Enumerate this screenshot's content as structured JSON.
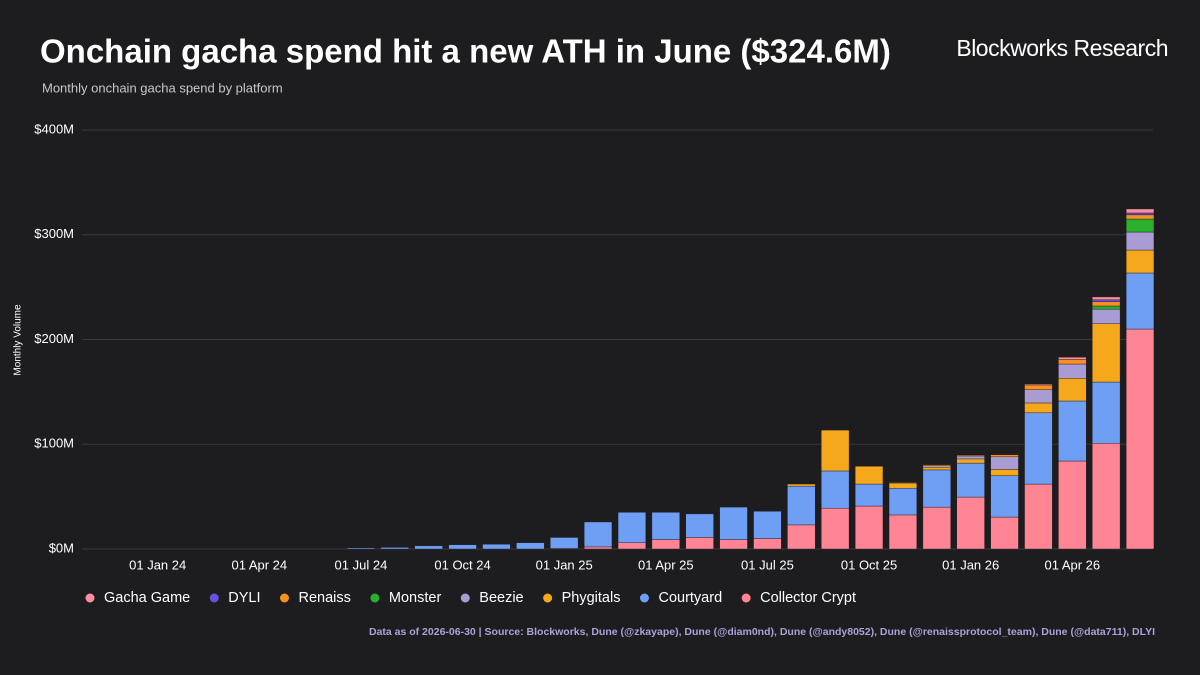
{
  "chart_data": {
    "type": "stacked_bar",
    "title": "Onchain gacha spend hit a new ATH in June ($324.6M)",
    "subtitle": "Monthly onchain gacha spend by platform",
    "brand": "Blockworks Research",
    "y_label": "Monthly Volume",
    "source": "Data as of 2026-06-30 | Source: Blockworks, Dune (@zkayape), Dune (@diam0nd), Dune (@andy8052), Dune (@renaissprotocol_team), Dune (@data711), DLYI",
    "categories": [
      null,
      null,
      "01 Jan 24",
      null,
      null,
      "01 Apr 24",
      null,
      null,
      "01 Jul 24",
      null,
      null,
      "01 Oct 24",
      null,
      null,
      "01 Jan 25",
      null,
      null,
      "01 Apr 25",
      null,
      null,
      "01 Jul 25",
      null,
      null,
      "01 Oct 25",
      null,
      null,
      "01 Jan 26",
      null,
      null,
      "01 Apr 26",
      null,
      null
    ],
    "series": [
      {
        "name": "Gacha Game",
        "color": "#ff8da1",
        "values": [
          0,
          0,
          0,
          0,
          0,
          0,
          0,
          0,
          0,
          0,
          0,
          0,
          0,
          0,
          0,
          0,
          0,
          0,
          0,
          0,
          0,
          0,
          0,
          0,
          0,
          0,
          0,
          0,
          0.9,
          2,
          2.6,
          3.8
        ]
      },
      {
        "name": "DYLI",
        "color": "#6a4fe0",
        "values": [
          0,
          0,
          0,
          0,
          0,
          0,
          0,
          0,
          0,
          0,
          0,
          0,
          0,
          0,
          0,
          0,
          0,
          0,
          0,
          0,
          0,
          0,
          0,
          0,
          0,
          0,
          0,
          0,
          0,
          0,
          2,
          1.8
        ]
      },
      {
        "name": "Renaiss",
        "color": "#f7901e",
        "values": [
          0,
          0,
          0,
          0,
          0,
          0,
          0,
          0,
          0,
          0,
          0,
          0,
          0,
          0,
          0,
          0,
          0,
          0,
          0,
          0,
          0,
          0,
          0,
          0,
          0.5,
          1,
          0.9,
          2,
          4.6,
          4.4,
          4,
          4
        ]
      },
      {
        "name": "Monster",
        "color": "#2ab02a",
        "values": [
          0,
          0,
          0,
          0,
          0,
          0,
          0,
          0,
          0,
          0,
          0,
          0,
          0,
          0,
          0,
          0,
          0,
          0,
          0,
          0,
          0,
          0,
          0,
          0,
          0,
          0,
          0,
          0,
          0,
          0,
          3,
          12.4
        ]
      },
      {
        "name": "Beezie",
        "color": "#a99bd4",
        "values": [
          0,
          0,
          0,
          0,
          0,
          0,
          0,
          0,
          0,
          0,
          0,
          0,
          0,
          0,
          0,
          0,
          0,
          0,
          0,
          0,
          0,
          0,
          0,
          0,
          0.5,
          1.5,
          2.8,
          12,
          12.6,
          13.6,
          14,
          17.2
        ]
      },
      {
        "name": "Phygitals",
        "color": "#f5a81c",
        "values": [
          0,
          0,
          0,
          0,
          0,
          0,
          0,
          0,
          0,
          0,
          0,
          0,
          0,
          0,
          0,
          0,
          0,
          0,
          0,
          0,
          0,
          2,
          39,
          17,
          5,
          2.5,
          4,
          6,
          9.4,
          21.7,
          55.6,
          21.9
        ]
      },
      {
        "name": "Courtyard",
        "color": "#6f9ef5",
        "values": [
          0,
          0,
          0,
          0,
          0,
          0,
          0,
          0,
          1,
          1.5,
          3,
          4,
          4.5,
          6,
          10.5,
          23.8,
          29,
          26,
          22.5,
          31,
          26,
          37,
          35.5,
          21,
          25.5,
          35.5,
          32.4,
          39.5,
          68,
          57.3,
          58.4,
          53.5
        ]
      },
      {
        "name": "Collector Crypt",
        "color": "#ff8494",
        "values": [
          0,
          0,
          0,
          0,
          0,
          0,
          0,
          0,
          0,
          0,
          0,
          0,
          0,
          0,
          0.5,
          2,
          6,
          9,
          11,
          9,
          10,
          23,
          39,
          41,
          32.5,
          40,
          49.6,
          30.5,
          62,
          84,
          101,
          210
        ]
      }
    ],
    "ylim": [
      0,
      400
    ],
    "yticks": [
      {
        "value": 0,
        "label": "$0M"
      },
      {
        "value": 100,
        "label": "$100M"
      },
      {
        "value": 200,
        "label": "$200M"
      },
      {
        "value": 300,
        "label": "$300M"
      },
      {
        "value": 400,
        "label": "$400M"
      }
    ],
    "grid": true
  }
}
